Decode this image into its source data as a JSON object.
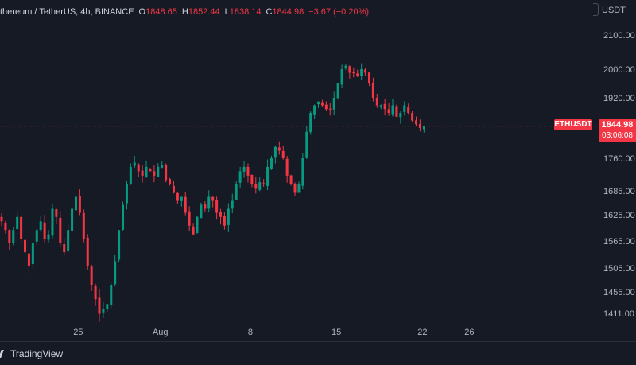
{
  "legend": {
    "symbol": "thereum / TetherUS, 4h, BINANCE",
    "open_key": "O",
    "open": "1848.65",
    "high_key": "H",
    "high": "1852.44",
    "low_key": "L",
    "low": "1838.14",
    "close_key": "C",
    "close": "1844.98",
    "change": "−3.67 (−0.20%)"
  },
  "currency": "USDT",
  "ticker_tag": "ETHUSDT",
  "last_price": "1844.98",
  "countdown": "03:06:08",
  "footer": {
    "brand": "TradingView"
  },
  "colors": {
    "up": "#089981",
    "down": "#f23645",
    "background": "#161a25",
    "text": "#b2b5be"
  },
  "chart_data": {
    "type": "candlestick",
    "y_ticks": [
      "2100.00",
      "2000.00",
      "1920.00",
      "1760.00",
      "1685.00",
      "1625.00",
      "1565.00",
      "1505.00",
      "1455.00",
      "1411.00"
    ],
    "y_tick_values": [
      2100,
      2000,
      1920,
      1760,
      1685,
      1625,
      1565,
      1505,
      1455,
      1411
    ],
    "x_ticks": [
      "25",
      "Aug",
      "8",
      "15",
      "22",
      "26"
    ],
    "x_tick_index": [
      20,
      41,
      64,
      86,
      108,
      120
    ],
    "last_price": 1844.98,
    "close_path_approx": [
      1610,
      1590,
      1560,
      1590,
      1620,
      1570,
      1540,
      1510,
      1560,
      1590,
      1610,
      1570,
      1580,
      1640,
      1620,
      1560,
      1540,
      1590,
      1640,
      1670,
      1630,
      1570,
      1510,
      1470,
      1440,
      1410,
      1420,
      1430,
      1470,
      1520,
      1590,
      1650,
      1700,
      1740,
      1750,
      1730,
      1720,
      1740,
      1730,
      1720,
      1740,
      1745,
      1710,
      1700,
      1680,
      1660,
      1670,
      1630,
      1600,
      1580,
      1620,
      1650,
      1640,
      1670,
      1660,
      1630,
      1620,
      1600,
      1640,
      1660,
      1700,
      1730,
      1740,
      1720,
      1700,
      1690,
      1705,
      1700,
      1740,
      1760,
      1790,
      1780,
      1760,
      1720,
      1700,
      1680,
      1700,
      1760,
      1830,
      1880,
      1900,
      1910,
      1900,
      1890,
      1890,
      1920,
      1960,
      2000,
      2010,
      1990,
      1990,
      1980,
      2000,
      1990,
      1960,
      1920,
      1900,
      1900,
      1890,
      1880,
      1900,
      1870,
      1880,
      1900,
      1880,
      1860,
      1850,
      1840,
      1845
    ]
  }
}
